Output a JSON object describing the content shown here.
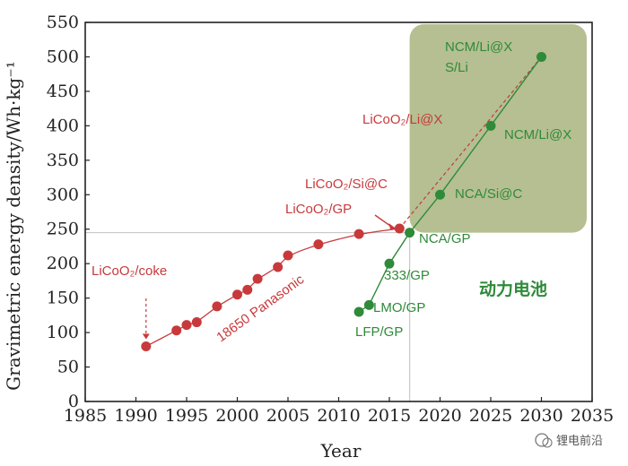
{
  "chart_data": {
    "type": "scatter",
    "xlabel": "Year",
    "ylabel": "Gravimetric energy density/Wh·kg⁻¹",
    "xlim": [
      1985,
      2035
    ],
    "ylim": [
      0,
      550
    ],
    "xticks": [
      "1985",
      "1990",
      "1995",
      "2000",
      "2005",
      "2010",
      "2015",
      "2020",
      "2025",
      "2030",
      "2035"
    ],
    "yticks": [
      "0",
      "50",
      "100",
      "150",
      "200",
      "250",
      "300",
      "350",
      "400",
      "450",
      "500",
      "550"
    ],
    "highlight_region": {
      "x": [
        2017,
        2035
      ],
      "y": [
        245,
        550
      ],
      "color": "#b5bf91"
    },
    "reference_line": {
      "y": 245,
      "x": [
        1985,
        2017
      ]
    },
    "series": [
      {
        "name": "18650 Panasonic",
        "color": "#c8393b",
        "x": [
          1991,
          1994,
          1995,
          1996,
          1998,
          2000,
          2001,
          2002,
          2004,
          2005,
          2008,
          2012,
          2016
        ],
        "y": [
          80,
          103,
          111,
          115,
          138,
          155,
          162,
          178,
          195,
          212,
          228,
          243,
          251
        ]
      },
      {
        "name": "",
        "color": "#2f8a3a",
        "x": [
          2012,
          2013,
          2015,
          2017,
          2020,
          2025,
          2030
        ],
        "y": [
          130,
          140,
          200,
          245,
          300,
          400,
          500
        ]
      }
    ],
    "annotations": [
      {
        "text": "LiCoO₂/coke",
        "color": "red"
      },
      {
        "text": "18650 Panasonic",
        "color": "red"
      },
      {
        "text": "LiCoO₂/GP",
        "color": "red"
      },
      {
        "text": "LiCoO₂/Si@C",
        "color": "red"
      },
      {
        "text": "LiCoO₂/Li@X",
        "color": "red"
      },
      {
        "text": "LFP/GP",
        "color": "green"
      },
      {
        "text": "LMO/GP",
        "color": "green"
      },
      {
        "text": "333/GP",
        "color": "green"
      },
      {
        "text": "NCA/GP",
        "color": "green"
      },
      {
        "text": "NCA/Si@C",
        "color": "green"
      },
      {
        "text": "NCM/Li@X",
        "color": "green"
      },
      {
        "text": "NCM/Li@X",
        "color": "green"
      },
      {
        "text": "S/Li",
        "color": "green"
      },
      {
        "text": "动力电池",
        "color": "green"
      }
    ],
    "watermark": "锂电前沿"
  }
}
